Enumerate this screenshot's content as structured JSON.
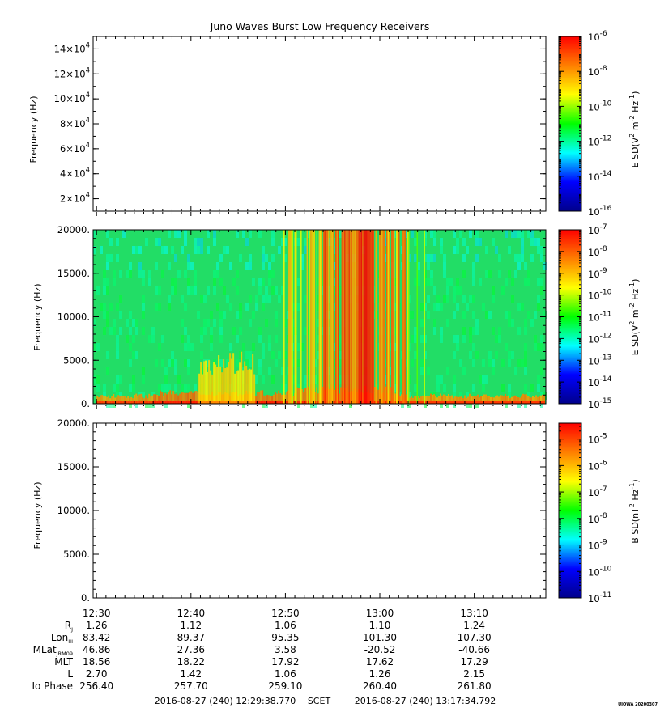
{
  "title": "Juno Waves Burst Low Frequency Receivers",
  "footer": {
    "start_scet": "2016-08-27 (240) 12:29:38.770",
    "label": "SCET",
    "end_scet": "2016-08-27 (240) 13:17:34.792",
    "credit": "UIOWA 20200307"
  },
  "colors": {
    "colorbar_stops": [
      "#00008b",
      "#0000ff",
      "#00ffff",
      "#00ff00",
      "#ffff00",
      "#ff7f00",
      "#ff0000"
    ],
    "spectrogram_background": "#22dd66"
  },
  "chart_data": [
    {
      "type": "heatmap",
      "ylabel": "Frequency (Hz)",
      "yticks": [
        {
          "base": "2×10",
          "exp": "4",
          "value": 20000
        },
        {
          "base": "4×10",
          "exp": "4",
          "value": 40000
        },
        {
          "base": "6×10",
          "exp": "4",
          "value": 60000
        },
        {
          "base": "8×10",
          "exp": "4",
          "value": 80000
        },
        {
          "base": "10×10",
          "exp": "4",
          "value": 100000
        },
        {
          "base": "12×10",
          "exp": "4",
          "value": 120000
        },
        {
          "base": "14×10",
          "exp": "4",
          "value": 140000
        }
      ],
      "ylim": [
        10000,
        150000
      ],
      "empty": true,
      "colorbar": {
        "label_parts": [
          "E SD(V",
          "2",
          " m",
          "-2",
          " Hz",
          "-1",
          ")"
        ],
        "log_range": [
          -16,
          -6
        ],
        "ticks": [
          {
            "base": "10",
            "exp": "-6"
          },
          {
            "base": "10",
            "exp": "-8"
          },
          {
            "base": "10",
            "exp": "-10"
          },
          {
            "base": "10",
            "exp": "-12"
          },
          {
            "base": "10",
            "exp": "-14"
          },
          {
            "base": "10",
            "exp": "-16"
          }
        ]
      }
    },
    {
      "type": "heatmap",
      "ylabel": "Frequency (Hz)",
      "yticks": [
        {
          "label": "0.",
          "value": 0
        },
        {
          "label": "5000.",
          "value": 5000
        },
        {
          "label": "10000.",
          "value": 10000
        },
        {
          "label": "15000.",
          "value": 15000
        },
        {
          "label": "20000.",
          "value": 20000
        }
      ],
      "ylim": [
        0,
        20000
      ],
      "empty": false,
      "spectrogram": {
        "background_log": -11.6,
        "low_band": [
          {
            "x": [
              12.5,
              12.6
            ],
            "top_hz": 900,
            "log": -8.8
          },
          {
            "x": [
              12.6,
              12.85
            ],
            "top_hz": 1200,
            "log": -8.5
          },
          {
            "x": [
              12.68,
              12.78
            ],
            "top_hz": 4800,
            "log": -9.6
          },
          {
            "x": [
              12.85,
              13.02
            ],
            "top_hz": 1600,
            "log": -8.6
          },
          {
            "x": [
              13.02,
              13.29
            ],
            "top_hz": 900,
            "log": -8.8
          }
        ],
        "bursts": [
          {
            "x": [
              12.83,
              12.9
            ],
            "density": 0.55,
            "log": -9.4
          },
          {
            "x": [
              12.9,
              12.96
            ],
            "density": 0.9,
            "log": -8.2
          },
          {
            "x": [
              12.96,
              12.99
            ],
            "density": 1.0,
            "log": -7.3
          },
          {
            "x": [
              12.99,
              13.05
            ],
            "density": 0.7,
            "log": -8.6
          },
          {
            "x": [
              13.05,
              13.08
            ],
            "density": 0.35,
            "log": -9.8
          }
        ]
      },
      "colorbar": {
        "label_parts": [
          "E SD(V",
          "2",
          " m",
          "-2",
          " Hz",
          "-1",
          ")"
        ],
        "log_range": [
          -15,
          -7
        ],
        "ticks": [
          {
            "base": "10",
            "exp": "-7"
          },
          {
            "base": "10",
            "exp": "-8"
          },
          {
            "base": "10",
            "exp": "-9"
          },
          {
            "base": "10",
            "exp": "-10"
          },
          {
            "base": "10",
            "exp": "-11"
          },
          {
            "base": "10",
            "exp": "-12"
          },
          {
            "base": "10",
            "exp": "-13"
          },
          {
            "base": "10",
            "exp": "-14"
          },
          {
            "base": "10",
            "exp": "-15"
          }
        ]
      }
    },
    {
      "type": "heatmap",
      "ylabel": "Frequency (Hz)",
      "yticks": [
        {
          "label": "0.",
          "value": 0
        },
        {
          "label": "5000.",
          "value": 5000
        },
        {
          "label": "10000.",
          "value": 10000
        },
        {
          "label": "15000.",
          "value": 15000
        },
        {
          "label": "20000.",
          "value": 20000
        }
      ],
      "ylim": [
        0,
        20000
      ],
      "empty": true,
      "colorbar": {
        "label_parts": [
          "B SD(nT",
          "2",
          " Hz",
          "-1",
          ")"
        ],
        "log_range": [
          -11,
          -4.4
        ],
        "ticks": [
          {
            "base": "10",
            "exp": "-5"
          },
          {
            "base": "10",
            "exp": "-6"
          },
          {
            "base": "10",
            "exp": "-7"
          },
          {
            "base": "10",
            "exp": "-8"
          },
          {
            "base": "10",
            "exp": "-9"
          },
          {
            "base": "10",
            "exp": "-10"
          },
          {
            "base": "10",
            "exp": "-11"
          }
        ]
      }
    }
  ],
  "time_axis": {
    "range_hours": [
      12.494,
      13.293
    ],
    "ticks": [
      {
        "label": "12:30",
        "hour": 12.5
      },
      {
        "label": "12:40",
        "hour": 12.6667
      },
      {
        "label": "12:50",
        "hour": 12.8333
      },
      {
        "label": "13:00",
        "hour": 13.0
      },
      {
        "label": "13:10",
        "hour": 13.1667
      }
    ]
  },
  "ephemeris": {
    "rows": [
      {
        "label": "R",
        "sub": "J",
        "values": [
          "1.26",
          "1.12",
          "1.06",
          "1.10",
          "1.24"
        ]
      },
      {
        "label": "Lon",
        "sub": "III",
        "values": [
          "83.42",
          "89.37",
          "95.35",
          "101.30",
          "107.30"
        ]
      },
      {
        "label": "MLat",
        "sub": "JRM09",
        "values": [
          "46.86",
          "27.36",
          "3.58",
          "-20.52",
          "-40.66"
        ]
      },
      {
        "label": "MLT",
        "sub": "",
        "values": [
          "18.56",
          "18.22",
          "17.92",
          "17.62",
          "17.29"
        ]
      },
      {
        "label": "L",
        "sub": "",
        "values": [
          "2.70",
          "1.42",
          "1.06",
          "1.26",
          "2.15"
        ]
      },
      {
        "label": "Io Phase",
        "sub": "",
        "values": [
          "256.40",
          "257.70",
          "259.10",
          "260.40",
          "261.80"
        ]
      }
    ]
  }
}
